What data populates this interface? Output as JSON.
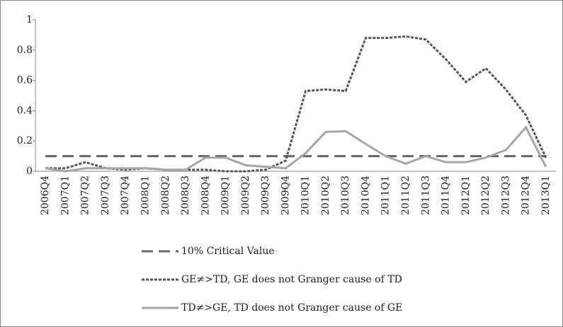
{
  "chart_data": {
    "type": "line",
    "categories": [
      "2006Q4",
      "2007Q1",
      "2007Q2",
      "2007Q3",
      "2007Q4",
      "2008Q1",
      "2008Q2",
      "2008Q3",
      "2008Q4",
      "2009Q1",
      "2009Q2",
      "2009Q3",
      "2009Q4",
      "2010Q1",
      "2010Q2",
      "2010Q3",
      "2010Q4",
      "2011Q1",
      "2011Q2",
      "2011Q3",
      "2011Q4",
      "2012Q1",
      "2012Q2",
      "2012Q3",
      "2012Q4",
      "2013Q1"
    ],
    "series": [
      {
        "name": "10% Critical Value",
        "color": "#666666",
        "style": "dashed",
        "values": [
          0.1,
          0.1,
          0.1,
          0.1,
          0.1,
          0.1,
          0.1,
          0.1,
          0.1,
          0.1,
          0.1,
          0.1,
          0.1,
          0.1,
          0.1,
          0.1,
          0.1,
          0.1,
          0.1,
          0.1,
          0.1,
          0.1,
          0.1,
          0.1,
          0.1,
          0.1
        ]
      },
      {
        "name": "GE≠>TD, GE does not Granger cause of TD",
        "color": "#555555",
        "style": "dotted",
        "values": [
          0.02,
          0.02,
          0.06,
          0.02,
          0.01,
          0.02,
          0.01,
          0.01,
          0.01,
          0.0,
          0.0,
          0.01,
          0.07,
          0.53,
          0.54,
          0.53,
          0.88,
          0.88,
          0.89,
          0.87,
          0.74,
          0.59,
          0.68,
          0.54,
          0.37,
          0.09
        ]
      },
      {
        "name": "TD≠>GE, TD does not Granger cause of GE",
        "color": "#a6a6a6",
        "style": "solid",
        "values": [
          0.02,
          0.0,
          0.02,
          0.02,
          0.02,
          0.02,
          0.01,
          0.01,
          0.09,
          0.09,
          0.04,
          0.03,
          0.02,
          0.12,
          0.26,
          0.265,
          0.18,
          0.1,
          0.05,
          0.1,
          0.06,
          0.06,
          0.09,
          0.14,
          0.29,
          0.03
        ]
      }
    ],
    "ylim": [
      0,
      1
    ],
    "yticks": [
      0,
      0.2,
      0.4,
      0.6,
      0.8,
      1
    ],
    "grid": false
  }
}
